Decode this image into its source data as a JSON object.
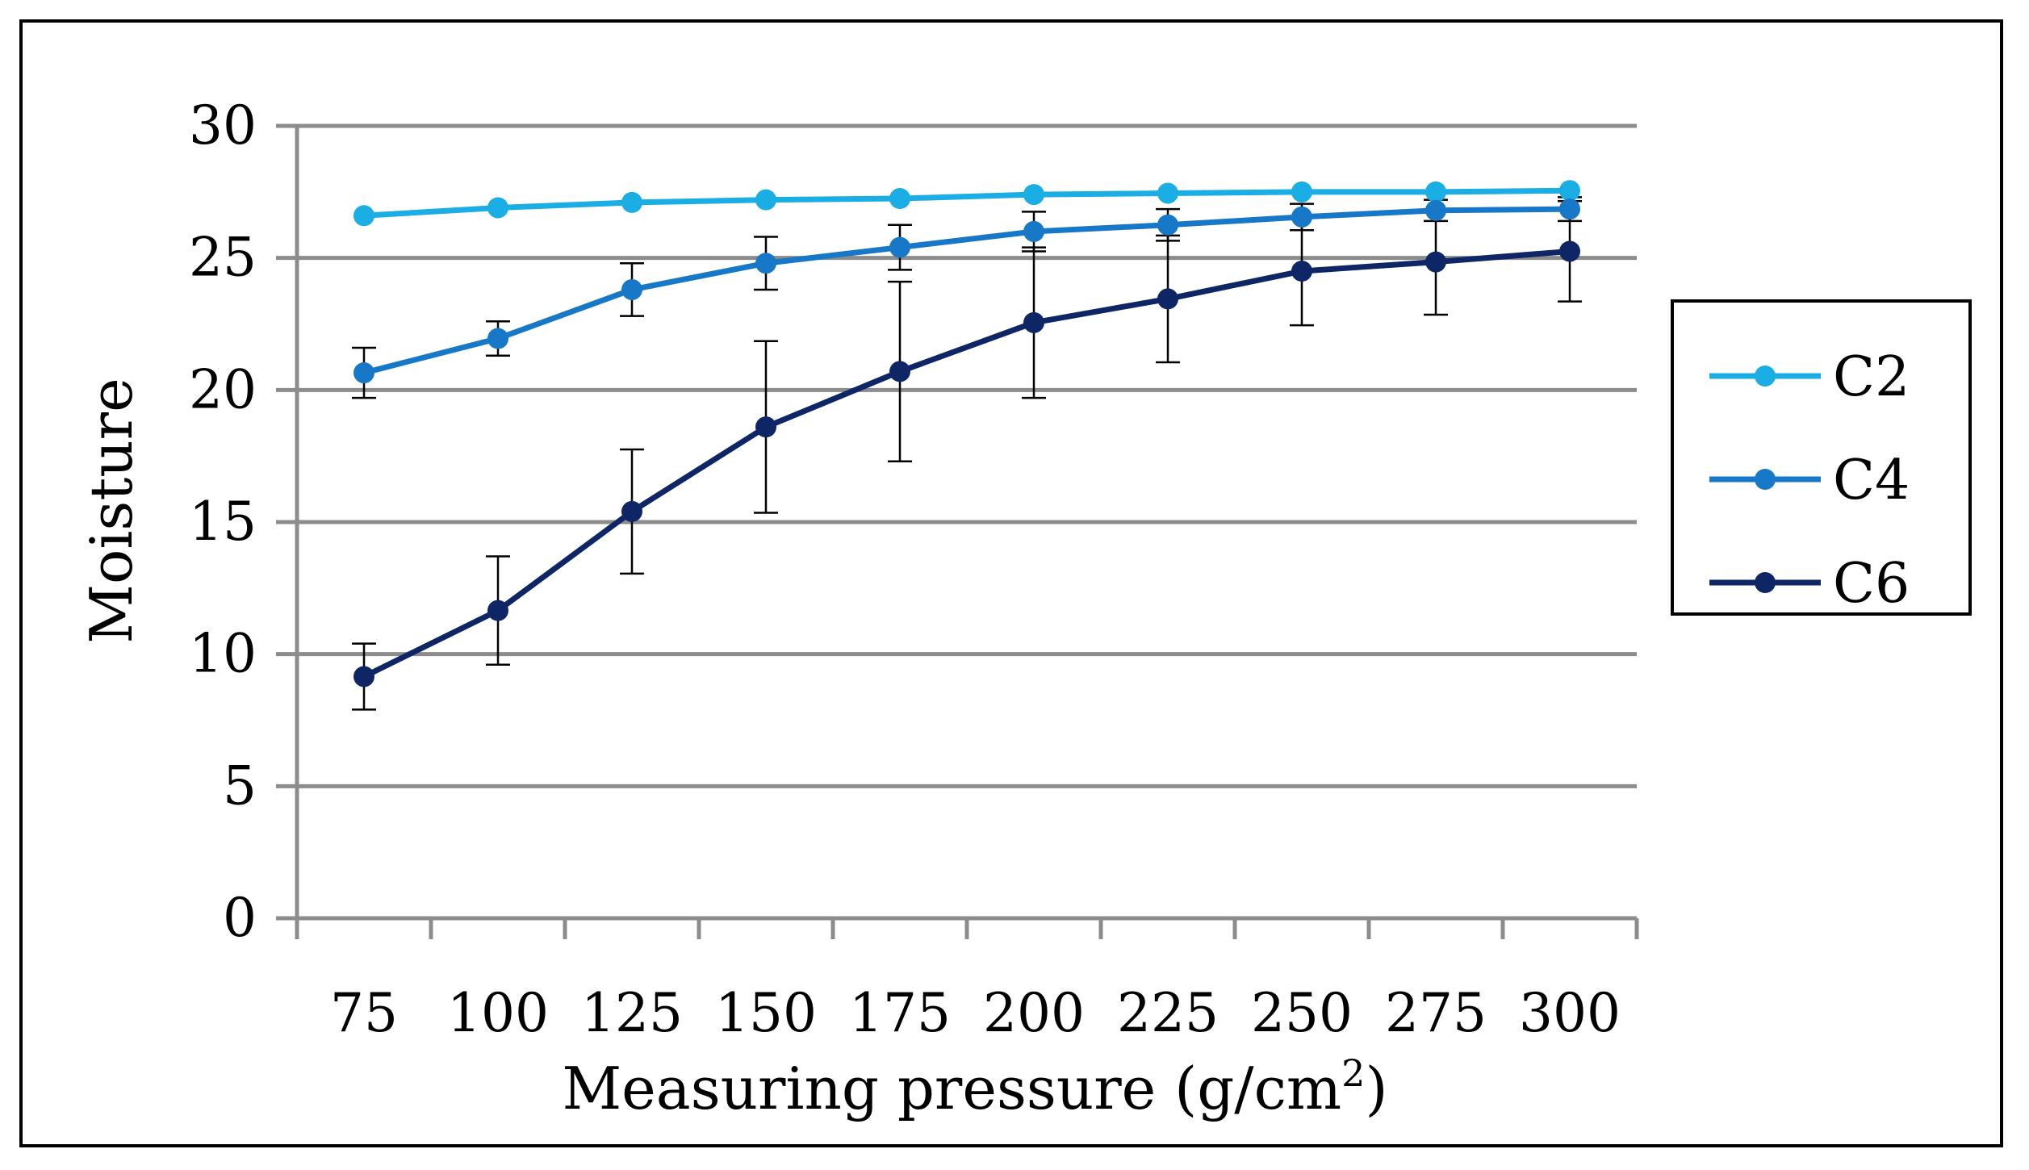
{
  "chart_data": {
    "type": "line",
    "title": "",
    "xlabel": "Measuring pressure (g/cm",
    "xlabel_sup": "2",
    "xlabel_end": ")",
    "ylabel": "Moisture",
    "ylim": [
      0,
      30
    ],
    "yticks": [
      0,
      5,
      10,
      15,
      20,
      25,
      30
    ],
    "grid": true,
    "legend_position": "right",
    "categories": [
      "75",
      "100",
      "125",
      "150",
      "175",
      "200",
      "225",
      "250",
      "275",
      "300"
    ],
    "series": [
      {
        "name": "C2",
        "color": "#1aaee5",
        "values": [
          26.6,
          26.9,
          27.1,
          27.2,
          27.25,
          27.4,
          27.45,
          27.5,
          27.5,
          27.55
        ],
        "errors": [
          0,
          0,
          0,
          0,
          0,
          0,
          0,
          0,
          0,
          0
        ]
      },
      {
        "name": "C4",
        "color": "#1778c7",
        "values": [
          20.65,
          21.95,
          23.8,
          24.8,
          25.4,
          26.0,
          26.25,
          26.55,
          26.8,
          26.85
        ],
        "errors": [
          0.95,
          0.65,
          1.0,
          1.0,
          0.85,
          0.75,
          0.6,
          0.5,
          0.4,
          0.45
        ]
      },
      {
        "name": "C6",
        "color": "#0e2566",
        "values": [
          9.15,
          11.65,
          15.4,
          18.6,
          20.7,
          22.55,
          23.45,
          24.5,
          24.85,
          25.25
        ],
        "errors": [
          1.25,
          2.05,
          2.35,
          3.25,
          3.4,
          2.85,
          2.4,
          2.05,
          2.0,
          1.9
        ]
      }
    ]
  }
}
